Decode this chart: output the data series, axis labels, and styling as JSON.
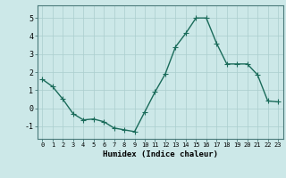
{
  "x": [
    0,
    1,
    2,
    3,
    4,
    5,
    6,
    7,
    8,
    9,
    10,
    11,
    12,
    13,
    14,
    15,
    16,
    17,
    18,
    19,
    20,
    21,
    22,
    23
  ],
  "y": [
    1.6,
    1.2,
    0.5,
    -0.3,
    -0.65,
    -0.6,
    -0.75,
    -1.1,
    -1.2,
    -1.3,
    -0.2,
    0.9,
    1.9,
    3.4,
    4.15,
    5.0,
    5.0,
    3.6,
    2.45,
    2.45,
    2.45,
    1.85,
    0.4,
    0.35
  ],
  "line_color": "#1a6b5a",
  "marker": "+",
  "marker_color": "#1a6b5a",
  "bg_color": "#cce8e8",
  "grid_color_major": "#aacece",
  "grid_color_minor": "#c0dede",
  "xlabel": "Humidex (Indice chaleur)",
  "xlim": [
    -0.5,
    23.5
  ],
  "ylim": [
    -1.7,
    5.7
  ],
  "yticks": [
    -1,
    0,
    1,
    2,
    3,
    4,
    5
  ],
  "xticks": [
    0,
    1,
    2,
    3,
    4,
    5,
    6,
    7,
    8,
    9,
    10,
    11,
    12,
    13,
    14,
    15,
    16,
    17,
    18,
    19,
    20,
    21,
    22,
    23
  ],
  "xtick_labels": [
    "0",
    "1",
    "2",
    "3",
    "4",
    "5",
    "6",
    "7",
    "8",
    "9",
    "10",
    "11",
    "12",
    "13",
    "14",
    "15",
    "16",
    "17",
    "18",
    "19",
    "20",
    "21",
    "22",
    "23"
  ],
  "line_width": 1.0,
  "marker_size": 4
}
